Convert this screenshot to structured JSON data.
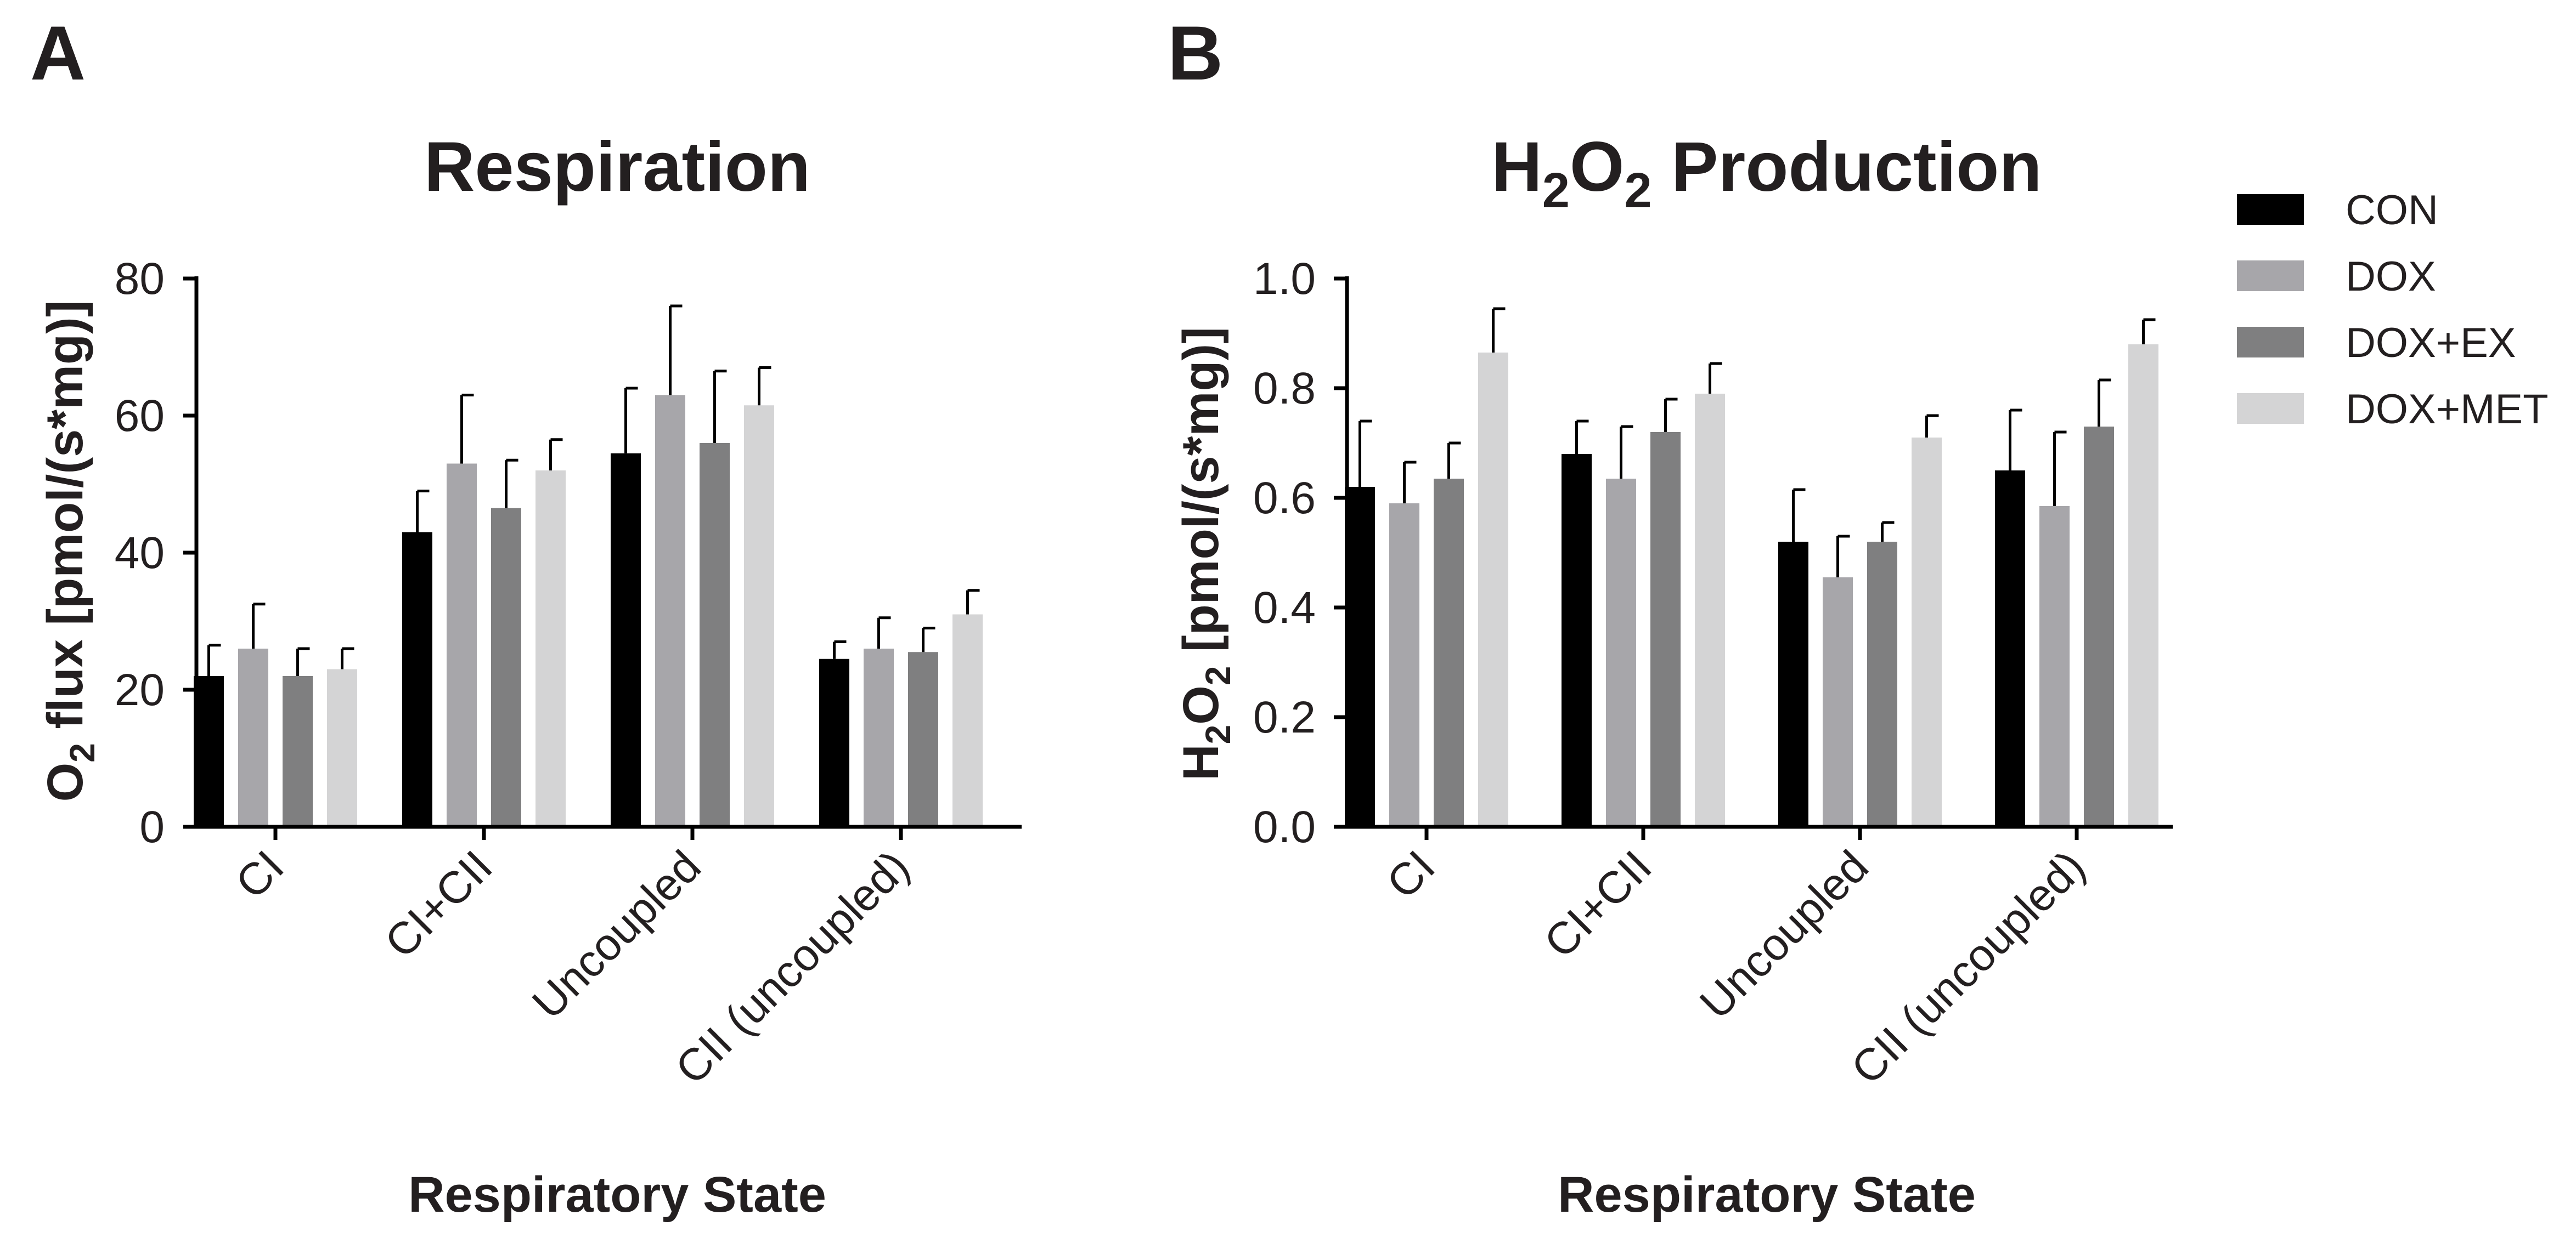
{
  "panels": {
    "a": {
      "letter": "A",
      "title": "Respiration",
      "ylabel_main": "O",
      "ylabel_sub": "2",
      "ylabel_rest": " flux [pmol/(s*mg)]",
      "xlabel": "Respiratory State"
    },
    "b": {
      "letter": "B",
      "title_main": "H",
      "title_sub1": "2",
      "title_mid": "O",
      "title_sub2": "2",
      "title_rest": " Production",
      "ylabel_main": "H",
      "ylabel_sub1": "2",
      "ylabel_mid": "O",
      "ylabel_sub2": "2",
      "ylabel_rest": " [pmol/(s*mg)]",
      "xlabel": "Respiratory State"
    }
  },
  "legend": [
    {
      "name": "CON",
      "color": "#000000"
    },
    {
      "name": "DOX",
      "color": "#a7a6aa"
    },
    {
      "name": "DOX+EX",
      "color": "#7f7f80"
    },
    {
      "name": "DOX+MET",
      "color": "#d4d4d5"
    }
  ],
  "chart_data": [
    {
      "type": "bar",
      "title": "Respiration",
      "xlabel": "Respiratory State",
      "ylabel": "O2 flux [pmol/(s*mg)]",
      "ylim": [
        0,
        80
      ],
      "yticks": [
        "0",
        "20",
        "40",
        "60",
        "80"
      ],
      "categories": [
        "CI",
        "CI+CII",
        "Uncoupled",
        "CII (uncoupled)"
      ],
      "series": [
        {
          "name": "CON",
          "values": [
            22,
            43,
            54.5,
            24.5
          ],
          "errors": [
            4.5,
            6,
            9.5,
            2.5
          ]
        },
        {
          "name": "DOX",
          "values": [
            26,
            53,
            63,
            26
          ],
          "errors": [
            6.5,
            10,
            13,
            4.5
          ]
        },
        {
          "name": "DOX+EX",
          "values": [
            22,
            46.5,
            56,
            25.5
          ],
          "errors": [
            4,
            7,
            10.5,
            3.5
          ]
        },
        {
          "name": "DOX+MET",
          "values": [
            23,
            52,
            61.5,
            31
          ],
          "errors": [
            3,
            4.5,
            5.5,
            3.5
          ]
        }
      ]
    },
    {
      "type": "bar",
      "title": "H2O2 Production",
      "xlabel": "Respiratory State",
      "ylabel": "H2O2 [pmol/(s*mg)]",
      "ylim": [
        0,
        1.0
      ],
      "yticks": [
        "0.0",
        "0.2",
        "0.4",
        "0.6",
        "0.8",
        "1.0"
      ],
      "categories": [
        "CI",
        "CI+CII",
        "Uncoupled",
        "CII (uncoupled)"
      ],
      "series": [
        {
          "name": "CON",
          "values": [
            0.62,
            0.68,
            0.52,
            0.65
          ],
          "errors": [
            0.12,
            0.06,
            0.095,
            0.11
          ]
        },
        {
          "name": "DOX",
          "values": [
            0.59,
            0.635,
            0.455,
            0.585
          ],
          "errors": [
            0.075,
            0.095,
            0.075,
            0.135
          ]
        },
        {
          "name": "DOX+EX",
          "values": [
            0.635,
            0.72,
            0.52,
            0.73
          ],
          "errors": [
            0.065,
            0.06,
            0.035,
            0.085
          ]
        },
        {
          "name": "DOX+MET",
          "values": [
            0.865,
            0.79,
            0.71,
            0.88
          ],
          "errors": [
            0.08,
            0.055,
            0.04,
            0.045
          ]
        }
      ]
    }
  ]
}
